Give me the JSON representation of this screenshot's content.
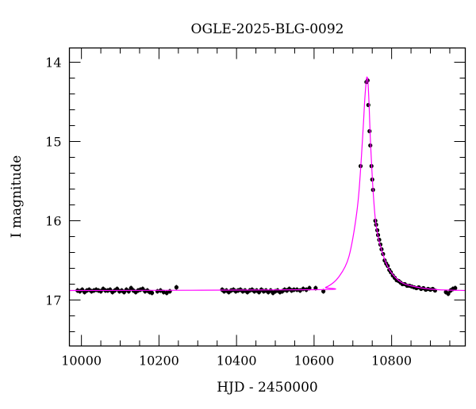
{
  "chart_data": {
    "type": "scatter",
    "title": "OGLE-2025-BLG-0092",
    "xlabel": "HJD - 2450000",
    "ylabel": "I magnitude",
    "xlim": [
      9969,
      10990
    ],
    "ylim": [
      17.58,
      13.82
    ],
    "y_inverted": true,
    "x_major_ticks": [
      10000,
      10200,
      10400,
      10600,
      10800
    ],
    "x_tick_labels": [
      "10000",
      "10200",
      "10400",
      "10600",
      "10800"
    ],
    "x_minor_step": 50,
    "y_major_ticks": [
      14,
      15,
      16,
      17
    ],
    "y_tick_labels": [
      "14",
      "15",
      "16",
      "17"
    ],
    "y_minor_step": 0.2,
    "grid": false,
    "colors": {
      "data": "#000000",
      "model": "#ff00ff"
    },
    "series": [
      {
        "name": "data",
        "type": "scatter_errorbar",
        "points": [
          [
            9990,
            16.88,
            0.03
          ],
          [
            9996,
            16.89,
            0.03
          ],
          [
            10002,
            16.87,
            0.03
          ],
          [
            10008,
            16.9,
            0.03
          ],
          [
            10014,
            16.88,
            0.03
          ],
          [
            10020,
            16.87,
            0.03
          ],
          [
            10026,
            16.89,
            0.03
          ],
          [
            10032,
            16.88,
            0.03
          ],
          [
            10038,
            16.87,
            0.03
          ],
          [
            10044,
            16.88,
            0.03
          ],
          [
            10050,
            16.89,
            0.03
          ],
          [
            10056,
            16.86,
            0.03
          ],
          [
            10062,
            16.88,
            0.03
          ],
          [
            10068,
            16.88,
            0.03
          ],
          [
            10074,
            16.87,
            0.03
          ],
          [
            10080,
            16.9,
            0.03
          ],
          [
            10086,
            16.88,
            0.03
          ],
          [
            10092,
            16.86,
            0.03
          ],
          [
            10098,
            16.89,
            0.03
          ],
          [
            10104,
            16.88,
            0.03
          ],
          [
            10110,
            16.9,
            0.03
          ],
          [
            10116,
            16.87,
            0.03
          ],
          [
            10122,
            16.89,
            0.03
          ],
          [
            10128,
            16.85,
            0.03
          ],
          [
            10134,
            16.88,
            0.03
          ],
          [
            10140,
            16.9,
            0.03
          ],
          [
            10146,
            16.88,
            0.03
          ],
          [
            10152,
            16.87,
            0.03
          ],
          [
            10158,
            16.86,
            0.03
          ],
          [
            10164,
            16.89,
            0.03
          ],
          [
            10170,
            16.88,
            0.03
          ],
          [
            10176,
            16.9,
            0.03
          ],
          [
            10182,
            16.91,
            0.03
          ],
          [
            10196,
            16.89,
            0.03
          ],
          [
            10204,
            16.88,
            0.03
          ],
          [
            10212,
            16.9,
            0.03
          ],
          [
            10220,
            16.91,
            0.03
          ],
          [
            10228,
            16.89,
            0.03
          ],
          [
            10245,
            16.84,
            0.03
          ],
          [
            10363,
            16.87,
            0.03
          ],
          [
            10368,
            16.89,
            0.03
          ],
          [
            10374,
            16.88,
            0.03
          ],
          [
            10380,
            16.9,
            0.03
          ],
          [
            10386,
            16.88,
            0.03
          ],
          [
            10392,
            16.87,
            0.03
          ],
          [
            10398,
            16.89,
            0.03
          ],
          [
            10404,
            16.88,
            0.03
          ],
          [
            10410,
            16.87,
            0.03
          ],
          [
            10416,
            16.89,
            0.03
          ],
          [
            10422,
            16.88,
            0.03
          ],
          [
            10428,
            16.9,
            0.03
          ],
          [
            10434,
            16.88,
            0.03
          ],
          [
            10440,
            16.87,
            0.03
          ],
          [
            10446,
            16.89,
            0.03
          ],
          [
            10452,
            16.88,
            0.03
          ],
          [
            10458,
            16.9,
            0.03
          ],
          [
            10464,
            16.87,
            0.03
          ],
          [
            10470,
            16.89,
            0.03
          ],
          [
            10476,
            16.88,
            0.03
          ],
          [
            10482,
            16.9,
            0.03
          ],
          [
            10488,
            16.88,
            0.03
          ],
          [
            10494,
            16.91,
            0.03
          ],
          [
            10500,
            16.89,
            0.03
          ],
          [
            10506,
            16.88,
            0.03
          ],
          [
            10512,
            16.9,
            0.03
          ],
          [
            10518,
            16.89,
            0.03
          ],
          [
            10524,
            16.87,
            0.03
          ],
          [
            10530,
            16.88,
            0.03
          ],
          [
            10536,
            16.86,
            0.03
          ],
          [
            10542,
            16.88,
            0.03
          ],
          [
            10548,
            16.87,
            0.03
          ],
          [
            10556,
            16.87,
            0.03
          ],
          [
            10564,
            16.88,
            0.03
          ],
          [
            10572,
            16.86,
            0.03
          ],
          [
            10580,
            16.87,
            0.03
          ],
          [
            10588,
            16.85,
            0.03
          ],
          [
            10604,
            16.85,
            0.03
          ],
          [
            10624,
            16.89,
            0.03
          ],
          [
            10720,
            15.31,
            0.02
          ],
          [
            10735,
            14.25,
            0.02
          ],
          [
            10738,
            14.23,
            0.02
          ],
          [
            10740,
            14.54,
            0.02
          ],
          [
            10743,
            14.87,
            0.02
          ],
          [
            10745,
            15.05,
            0.02
          ],
          [
            10748,
            15.31,
            0.02
          ],
          [
            10750,
            15.48,
            0.02
          ],
          [
            10752,
            15.61,
            0.02
          ],
          [
            10758,
            16.0,
            0.02
          ],
          [
            10760,
            16.05,
            0.02
          ],
          [
            10763,
            16.12,
            0.02
          ],
          [
            10765,
            16.18,
            0.02
          ],
          [
            10768,
            16.24,
            0.02
          ],
          [
            10771,
            16.3,
            0.02
          ],
          [
            10774,
            16.36,
            0.02
          ],
          [
            10778,
            16.42,
            0.02
          ],
          [
            10782,
            16.5,
            0.02
          ],
          [
            10786,
            16.54,
            0.02
          ],
          [
            10790,
            16.57,
            0.02
          ],
          [
            10794,
            16.62,
            0.02
          ],
          [
            10798,
            16.65,
            0.02
          ],
          [
            10803,
            16.69,
            0.02
          ],
          [
            10808,
            16.72,
            0.02
          ],
          [
            10813,
            16.75,
            0.02
          ],
          [
            10818,
            16.76,
            0.02
          ],
          [
            10823,
            16.78,
            0.02
          ],
          [
            10828,
            16.8,
            0.02
          ],
          [
            10834,
            16.8,
            0.02
          ],
          [
            10840,
            16.82,
            0.02
          ],
          [
            10846,
            16.82,
            0.02
          ],
          [
            10852,
            16.83,
            0.02
          ],
          [
            10858,
            16.84,
            0.02
          ],
          [
            10864,
            16.85,
            0.02
          ],
          [
            10870,
            16.84,
            0.02
          ],
          [
            10876,
            16.86,
            0.02
          ],
          [
            10882,
            16.85,
            0.02
          ],
          [
            10888,
            16.87,
            0.02
          ],
          [
            10894,
            16.86,
            0.02
          ],
          [
            10900,
            16.87,
            0.02
          ],
          [
            10906,
            16.86,
            0.02
          ],
          [
            10912,
            16.88,
            0.02
          ],
          [
            10940,
            16.9,
            0.03
          ],
          [
            10946,
            16.92,
            0.03
          ],
          [
            10952,
            16.88,
            0.03
          ],
          [
            10958,
            16.86,
            0.03
          ],
          [
            10964,
            16.85,
            0.03
          ]
        ]
      },
      {
        "name": "model",
        "type": "line",
        "points": [
          [
            9969,
            16.88
          ],
          [
            10600,
            16.87
          ],
          [
            10630,
            16.84
          ],
          [
            10650,
            16.78
          ],
          [
            10665,
            16.7
          ],
          [
            10680,
            16.58
          ],
          [
            10690,
            16.45
          ],
          [
            10700,
            16.22
          ],
          [
            10710,
            15.9
          ],
          [
            10716,
            15.62
          ],
          [
            10722,
            15.2
          ],
          [
            10727,
            14.8
          ],
          [
            10731,
            14.45
          ],
          [
            10735,
            14.22
          ],
          [
            10737,
            14.19
          ],
          [
            10739,
            14.25
          ],
          [
            10742,
            14.55
          ],
          [
            10745,
            14.95
          ],
          [
            10749,
            15.35
          ],
          [
            10753,
            15.68
          ],
          [
            10758,
            15.98
          ],
          [
            10764,
            16.17
          ],
          [
            10770,
            16.3
          ],
          [
            10780,
            16.46
          ],
          [
            10790,
            16.58
          ],
          [
            10800,
            16.66
          ],
          [
            10815,
            16.74
          ],
          [
            10830,
            16.79
          ],
          [
            10850,
            16.82
          ],
          [
            10880,
            16.85
          ],
          [
            10920,
            16.87
          ],
          [
            10990,
            16.88
          ]
        ]
      }
    ]
  }
}
